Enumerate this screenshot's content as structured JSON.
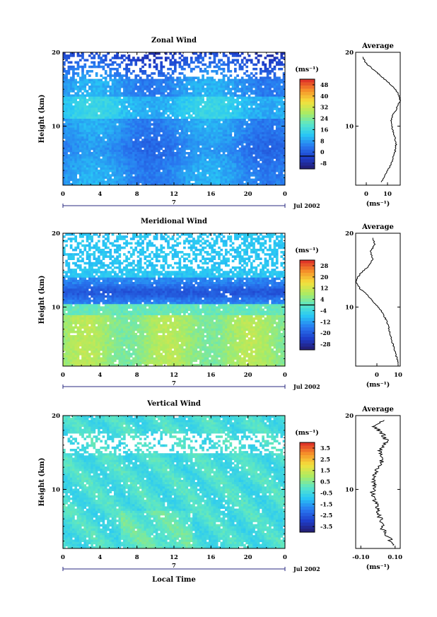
{
  "chart_data": [
    {
      "type": "heatmap",
      "title": "Zonal Wind",
      "ylabel": "Height (km)",
      "xlabel": "",
      "date_label": "Jul 2002",
      "day_label": "7",
      "x_ticks": [
        "0",
        "4",
        "8",
        "12",
        "16",
        "20",
        "0"
      ],
      "y_ticks": [
        "20",
        "10"
      ],
      "xlim": [
        0,
        24
      ],
      "ylim": [
        2,
        20
      ],
      "colorbar": {
        "unit": "(ms⁻¹)",
        "ticks": [
          "48",
          "40",
          "32",
          "24",
          "16",
          "8",
          "0",
          "-8"
        ],
        "range": [
          -8,
          48
        ],
        "contour_level": 0
      },
      "profile": {
        "title": "Average",
        "unit": "(ms⁻¹)",
        "x_ticks": [
          "0",
          "10"
        ],
        "y_ticks": [
          "20",
          "10"
        ],
        "xlim": [
          -5,
          16
        ],
        "heights": [
          2.4,
          3.5,
          4.5,
          5.5,
          6.5,
          7.5,
          8.5,
          9.5,
          10.5,
          11.5,
          12.5,
          13.5,
          14.5,
          15.5,
          16.5,
          17.5,
          18.5,
          19.5
        ],
        "values": [
          7.0,
          9.0,
          11.0,
          12.5,
          13.5,
          14.0,
          13.5,
          12.5,
          11.5,
          12.5,
          14.5,
          16.0,
          15.0,
          12.0,
          8.0,
          4.0,
          0.0,
          -2.0
        ]
      }
    },
    {
      "type": "heatmap",
      "title": "Meridional Wind",
      "ylabel": "Height (km)",
      "xlabel": "",
      "date_label": "Jul 2002",
      "day_label": "7",
      "x_ticks": [
        "0",
        "4",
        "8",
        "12",
        "16",
        "20",
        "0"
      ],
      "y_ticks": [
        "20",
        "10"
      ],
      "xlim": [
        0,
        24
      ],
      "ylim": [
        2,
        20
      ],
      "colorbar": {
        "unit": "(ms⁻¹)",
        "ticks": [
          "28",
          "20",
          "12",
          "4",
          "-4",
          "-12",
          "-20",
          "-28"
        ],
        "range": [
          -28,
          28
        ],
        "contour_level": 0
      },
      "profile": {
        "title": "Average",
        "unit": "(ms⁻¹)",
        "x_ticks": [
          "0",
          "10"
        ],
        "y_ticks": [
          "20",
          "10"
        ],
        "xlim": [
          -10,
          11
        ],
        "heights": [
          2.4,
          3.5,
          4.5,
          5.5,
          6.5,
          7.5,
          8.5,
          9.5,
          10.5,
          11.5,
          12.5,
          13.5,
          14.5,
          15.5,
          16.5,
          17.5,
          18.5,
          19.5
        ],
        "values": [
          10.0,
          9.0,
          8.0,
          7.0,
          6.0,
          5.5,
          4.0,
          2.0,
          -1.0,
          -4.0,
          -8.0,
          -10.0,
          -8.0,
          -4.0,
          -2.0,
          -3.0,
          -1.0,
          -2.0
        ]
      }
    },
    {
      "type": "heatmap",
      "title": "Vertical Wind",
      "ylabel": "Height (km)",
      "xlabel": "Local Time",
      "date_label": "Jul 2002",
      "day_label": "7",
      "x_ticks": [
        "0",
        "4",
        "8",
        "12",
        "16",
        "20",
        "0"
      ],
      "y_ticks": [
        "20",
        "10"
      ],
      "xlim": [
        0,
        24
      ],
      "ylim": [
        2,
        20
      ],
      "colorbar": {
        "unit": "(ms⁻¹)",
        "ticks": [
          "3.5",
          "2.5",
          "1.5",
          "0.5",
          "-0.5",
          "-1.5",
          "-2.5",
          "-3.5"
        ],
        "range": [
          -3.5,
          3.5
        ],
        "contour_level": null
      },
      "profile": {
        "title": "Average",
        "unit": "(ms⁻¹)",
        "x_ticks": [
          "-0.10",
          "0.10"
        ],
        "y_ticks": [
          "20",
          "10"
        ],
        "xlim": [
          -0.13,
          0.13
        ],
        "heights": [
          2.4,
          3.5,
          4.5,
          5.5,
          6.5,
          7.5,
          8.5,
          9.5,
          10.5,
          11.5,
          12.5,
          13.5,
          14.5,
          15.5,
          16.5,
          17.5,
          18.5,
          19.5
        ],
        "values": [
          0.1,
          0.06,
          0.03,
          0.02,
          0.01,
          0.0,
          -0.02,
          -0.03,
          -0.02,
          -0.03,
          -0.01,
          0.02,
          0.03,
          0.01,
          0.05,
          0.03,
          -0.02,
          0.04
        ]
      }
    }
  ]
}
